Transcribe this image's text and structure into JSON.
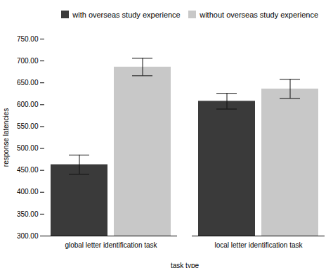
{
  "chart_data": {
    "type": "bar",
    "categories": [
      "global letter identification task",
      "local letter identification task"
    ],
    "series": [
      {
        "name": "with overseas study experience",
        "color": "#3a3a3a",
        "values": [
          463,
          608
        ],
        "errors": [
          22,
          18
        ]
      },
      {
        "name": "without overseas study experience",
        "color": "#c8c8c8",
        "values": [
          686,
          636
        ],
        "errors": [
          20,
          22
        ]
      }
    ],
    "ylim": [
      300,
      750
    ],
    "yticks": [
      {
        "value": 300,
        "label": "300.00"
      },
      {
        "value": 350,
        "label": "350.00"
      },
      {
        "value": 400,
        "label": "400.00"
      },
      {
        "value": 450,
        "label": "450.00"
      },
      {
        "value": 500,
        "label": "500.00"
      },
      {
        "value": 550,
        "label": "550.00"
      },
      {
        "value": 600,
        "label": "600.00"
      },
      {
        "value": 650,
        "label": "650.00"
      },
      {
        "value": 700,
        "label": "700.00"
      },
      {
        "value": 750,
        "label": "750.00"
      }
    ],
    "ylabel": "response latencies",
    "xlabel": "task type",
    "legend": "upper right"
  }
}
